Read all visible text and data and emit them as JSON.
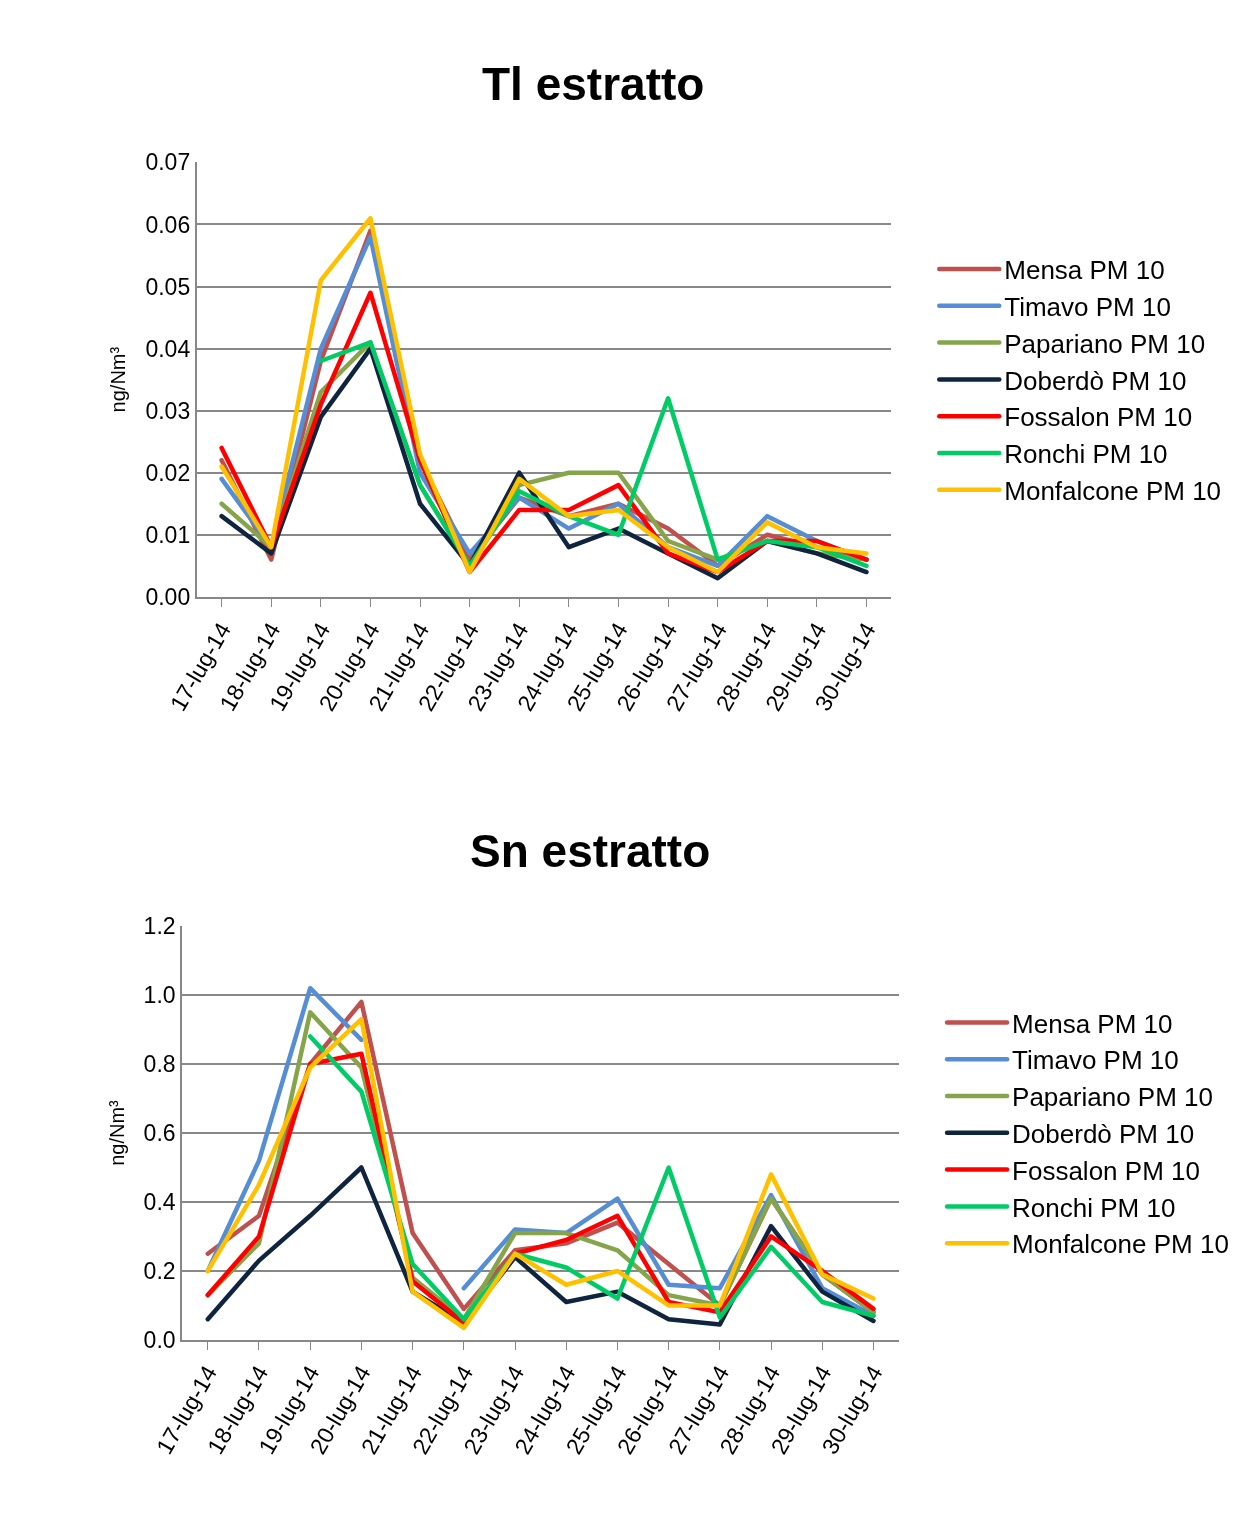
{
  "chart_data": [
    {
      "type": "line",
      "title": "Tl estratto",
      "ylabel": "ng/Nm³",
      "categories": [
        "17-lug-14",
        "18-lug-14",
        "19-lug-14",
        "20-lug-14",
        "21-lug-14",
        "22-lug-14",
        "23-lug-14",
        "24-lug-14",
        "25-lug-14",
        "26-lug-14",
        "27-lug-14",
        "28-lug-14",
        "29-lug-14",
        "30-lug-14"
      ],
      "ylim": [
        0,
        0.07
      ],
      "yticks": [
        {
          "value": 0,
          "label": "0.00"
        },
        {
          "value": 0.01,
          "label": "0.01"
        },
        {
          "value": 0.02,
          "label": "0.02"
        },
        {
          "value": 0.03,
          "label": "0.03"
        },
        {
          "value": 0.04,
          "label": "0.04"
        },
        {
          "value": 0.05,
          "label": "0.05"
        },
        {
          "value": 0.06,
          "label": "0.06"
        },
        {
          "value": 0.07,
          "label": "0.07"
        }
      ],
      "grid": "y",
      "legend": "right",
      "marker": "none",
      "line_style": "solid",
      "series": [
        {
          "name": "Mensa PM 10",
          "color": "#c0504d",
          "values": [
            0.022,
            0.006,
            0.038,
            0.059,
            0.022,
            0.006,
            0.016,
            0.013,
            0.015,
            0.011,
            0.005,
            0.01,
            0.008,
            0.006
          ]
        },
        {
          "name": "Timavo PM 10",
          "color": "#558ed5",
          "values": [
            0.019,
            0.008,
            0.04,
            0.058,
            0.02,
            0.007,
            0.016,
            0.011,
            0.015,
            0.008,
            0.005,
            0.013,
            0.009,
            0.006
          ]
        },
        {
          "name": "Papariano PM 10",
          "color": "#86a44a",
          "values": [
            0.015,
            0.008,
            0.033,
            0.041,
            0.018,
            0.005,
            0.018,
            0.02,
            0.02,
            0.009,
            0.006,
            0.009,
            0.007,
            0.006
          ]
        },
        {
          "name": "Doberdò PM 10",
          "color": "#0f243e",
          "values": [
            0.013,
            0.007,
            0.029,
            0.04,
            0.015,
            0.005,
            0.02,
            0.008,
            0.011,
            0.007,
            0.003,
            0.009,
            0.007,
            0.004
          ]
        },
        {
          "name": "Fossalon PM 10",
          "color": "#ff0000",
          "values": [
            0.024,
            0.008,
            0.031,
            0.049,
            0.022,
            0.004,
            0.014,
            0.014,
            0.018,
            0.007,
            0.004,
            0.009,
            0.009,
            0.006
          ]
        },
        {
          "name": "Ronchi PM 10",
          "color": "#00cc66",
          "values": [
            null,
            null,
            0.038,
            0.041,
            0.018,
            0.005,
            0.017,
            0.013,
            0.01,
            0.032,
            0.006,
            0.009,
            0.008,
            0.005
          ]
        },
        {
          "name": "Monfalcone PM 10",
          "color": "#ffc000",
          "values": [
            0.021,
            0.008,
            0.051,
            0.061,
            0.023,
            0.004,
            0.019,
            0.013,
            0.014,
            0.008,
            0.004,
            0.012,
            0.008,
            0.007
          ]
        }
      ]
    },
    {
      "type": "line",
      "title": "Sn estratto",
      "ylabel": "ng/Nm³",
      "categories": [
        "17-lug-14",
        "18-lug-14",
        "19-lug-14",
        "20-lug-14",
        "21-lug-14",
        "22-lug-14",
        "23-lug-14",
        "24-lug-14",
        "25-lug-14",
        "26-lug-14",
        "27-lug-14",
        "28-lug-14",
        "29-lug-14",
        "30-lug-14"
      ],
      "ylim": [
        0,
        1.2
      ],
      "yticks": [
        {
          "value": 0,
          "label": "0.0"
        },
        {
          "value": 0.2,
          "label": "0.2"
        },
        {
          "value": 0.4,
          "label": "0.4"
        },
        {
          "value": 0.6,
          "label": "0.6"
        },
        {
          "value": 0.8,
          "label": "0.8"
        },
        {
          "value": 1.0,
          "label": "1.0"
        },
        {
          "value": 1.2,
          "label": "1.2"
        }
      ],
      "grid": "y",
      "legend": "right",
      "marker": "none",
      "line_style": "solid",
      "series": [
        {
          "name": "Mensa PM 10",
          "color": "#c0504d",
          "values": [
            0.25,
            0.36,
            0.8,
            0.98,
            0.31,
            0.09,
            0.26,
            0.28,
            0.34,
            0.22,
            0.1,
            0.41,
            0.19,
            0.08
          ]
        },
        {
          "name": "Timavo PM 10",
          "color": "#558ed5",
          "values": [
            0.2,
            0.52,
            1.02,
            0.87,
            null,
            0.15,
            0.32,
            0.31,
            0.41,
            0.16,
            0.15,
            0.42,
            0.15,
            0.07
          ]
        },
        {
          "name": "Papariano PM 10",
          "color": "#86a44a",
          "values": [
            0.13,
            0.28,
            0.95,
            0.79,
            0.18,
            0.06,
            0.31,
            0.31,
            0.26,
            0.13,
            0.1,
            0.41,
            0.19,
            0.08
          ]
        },
        {
          "name": "Doberdò PM 10",
          "color": "#0f243e",
          "values": [
            0.06,
            0.23,
            0.36,
            0.5,
            0.14,
            0.05,
            0.24,
            0.11,
            0.14,
            0.06,
            0.045,
            0.33,
            0.14,
            0.055
          ]
        },
        {
          "name": "Fossalon PM 10",
          "color": "#ff0000",
          "values": [
            0.13,
            0.3,
            0.8,
            0.83,
            0.17,
            0.05,
            0.25,
            0.29,
            0.36,
            0.11,
            0.08,
            0.3,
            0.2,
            0.09
          ]
        },
        {
          "name": "Ronchi PM 10",
          "color": "#00cc66",
          "values": [
            null,
            null,
            0.88,
            0.72,
            0.22,
            0.06,
            0.25,
            0.21,
            0.12,
            0.5,
            0.065,
            0.27,
            0.11,
            0.07
          ]
        },
        {
          "name": "Monfalcone PM 10",
          "color": "#ffc000",
          "values": [
            0.2,
            0.45,
            0.79,
            0.93,
            0.14,
            0.035,
            0.25,
            0.16,
            0.2,
            0.1,
            0.1,
            0.48,
            0.19,
            0.12
          ]
        }
      ]
    }
  ]
}
